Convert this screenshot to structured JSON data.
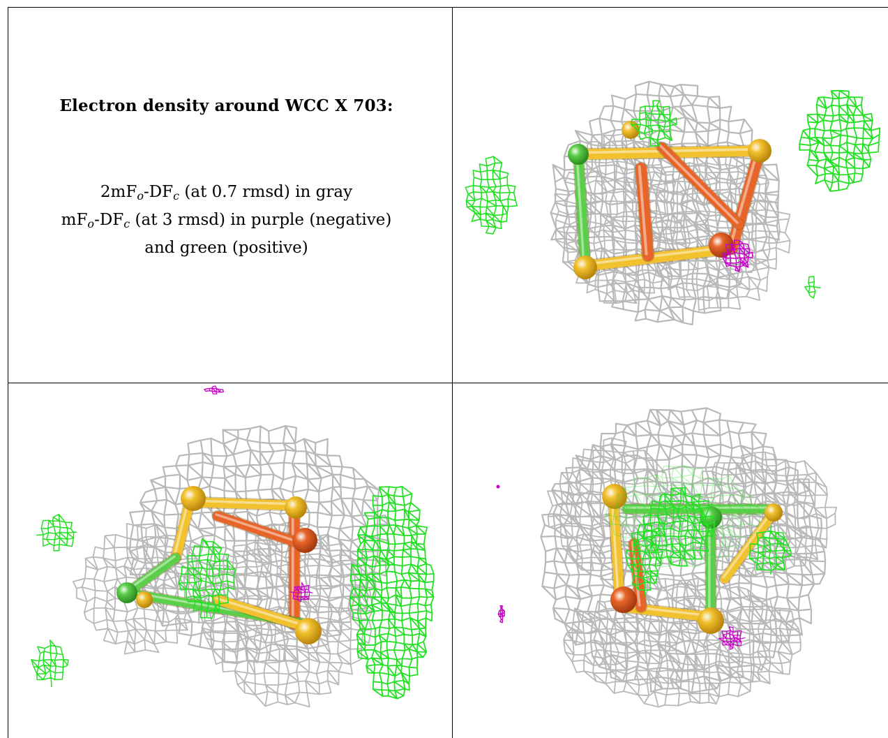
{
  "caption": {
    "title": "Electron density around WCC X 703:",
    "line1": {
      "pre": "2mF",
      "o": "o",
      "mid": "-DF",
      "c": "c",
      "post": " (at 0.7 rmsd) in gray"
    },
    "line2": {
      "pre": "mF",
      "o": "o",
      "mid": "-DF",
      "c": "c",
      "post": " (at 3 rmsd) in purple (negative)"
    },
    "line3": "and green (positive)"
  },
  "panels": [
    {
      "id": "view-top-right"
    },
    {
      "id": "view-bottom-left"
    },
    {
      "id": "view-bottom-right"
    }
  ],
  "colors": {
    "mesh_2fofc": "#b8b8b8",
    "mesh_positive": "#22e022",
    "mesh_negative": "#c800c8",
    "iron": "#e8652a",
    "sulfur": "#f2c12e",
    "chloride_or_ligand": "#5ccf4a"
  }
}
